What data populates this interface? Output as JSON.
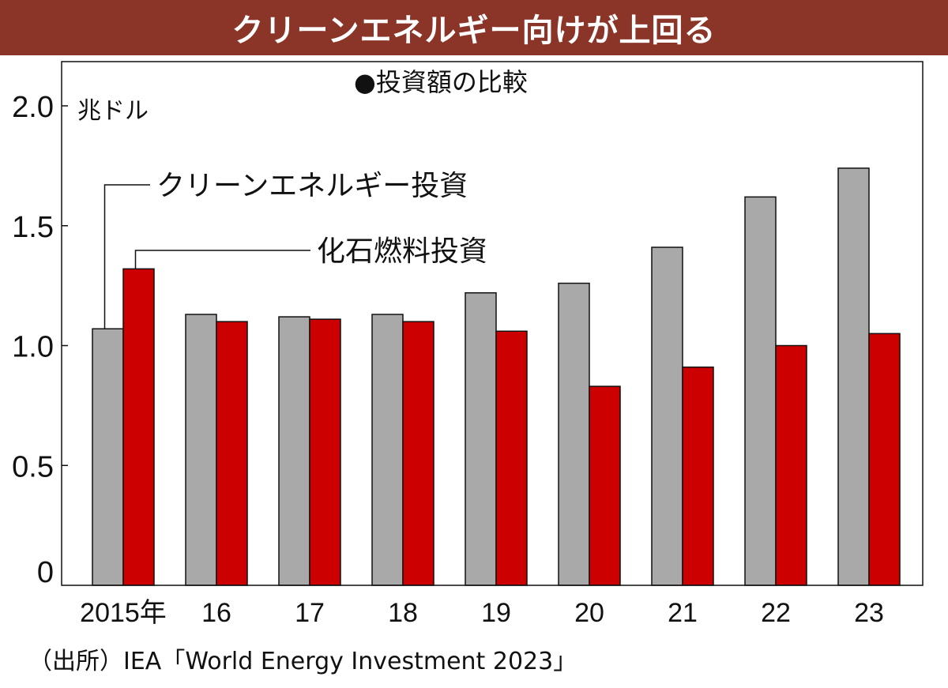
{
  "header": {
    "title": "クリーンエネルギー向けが上回る"
  },
  "chart_data": {
    "type": "bar",
    "title": "●投資額の比較",
    "unit_label": "兆ドル",
    "categories": [
      "2015年",
      "16",
      "17",
      "18",
      "19",
      "20",
      "21",
      "22",
      "23"
    ],
    "series": [
      {
        "name": "クリーンエネルギー投資",
        "color": "#a9a9a9",
        "values": [
          1.07,
          1.13,
          1.12,
          1.13,
          1.22,
          1.26,
          1.41,
          1.62,
          1.74
        ]
      },
      {
        "name": "化石燃料投資",
        "color": "#cc0000",
        "values": [
          1.32,
          1.1,
          1.11,
          1.1,
          1.06,
          0.83,
          0.91,
          1.0,
          1.05
        ]
      }
    ],
    "ylim": [
      0,
      2.0
    ],
    "yticks": [
      "0",
      "0.5",
      "1.0",
      "1.5",
      "2.0"
    ],
    "legend": "callout-labels",
    "grid": false
  },
  "footer": {
    "source": "（出所）IEA「World Energy Investment 2023」"
  }
}
